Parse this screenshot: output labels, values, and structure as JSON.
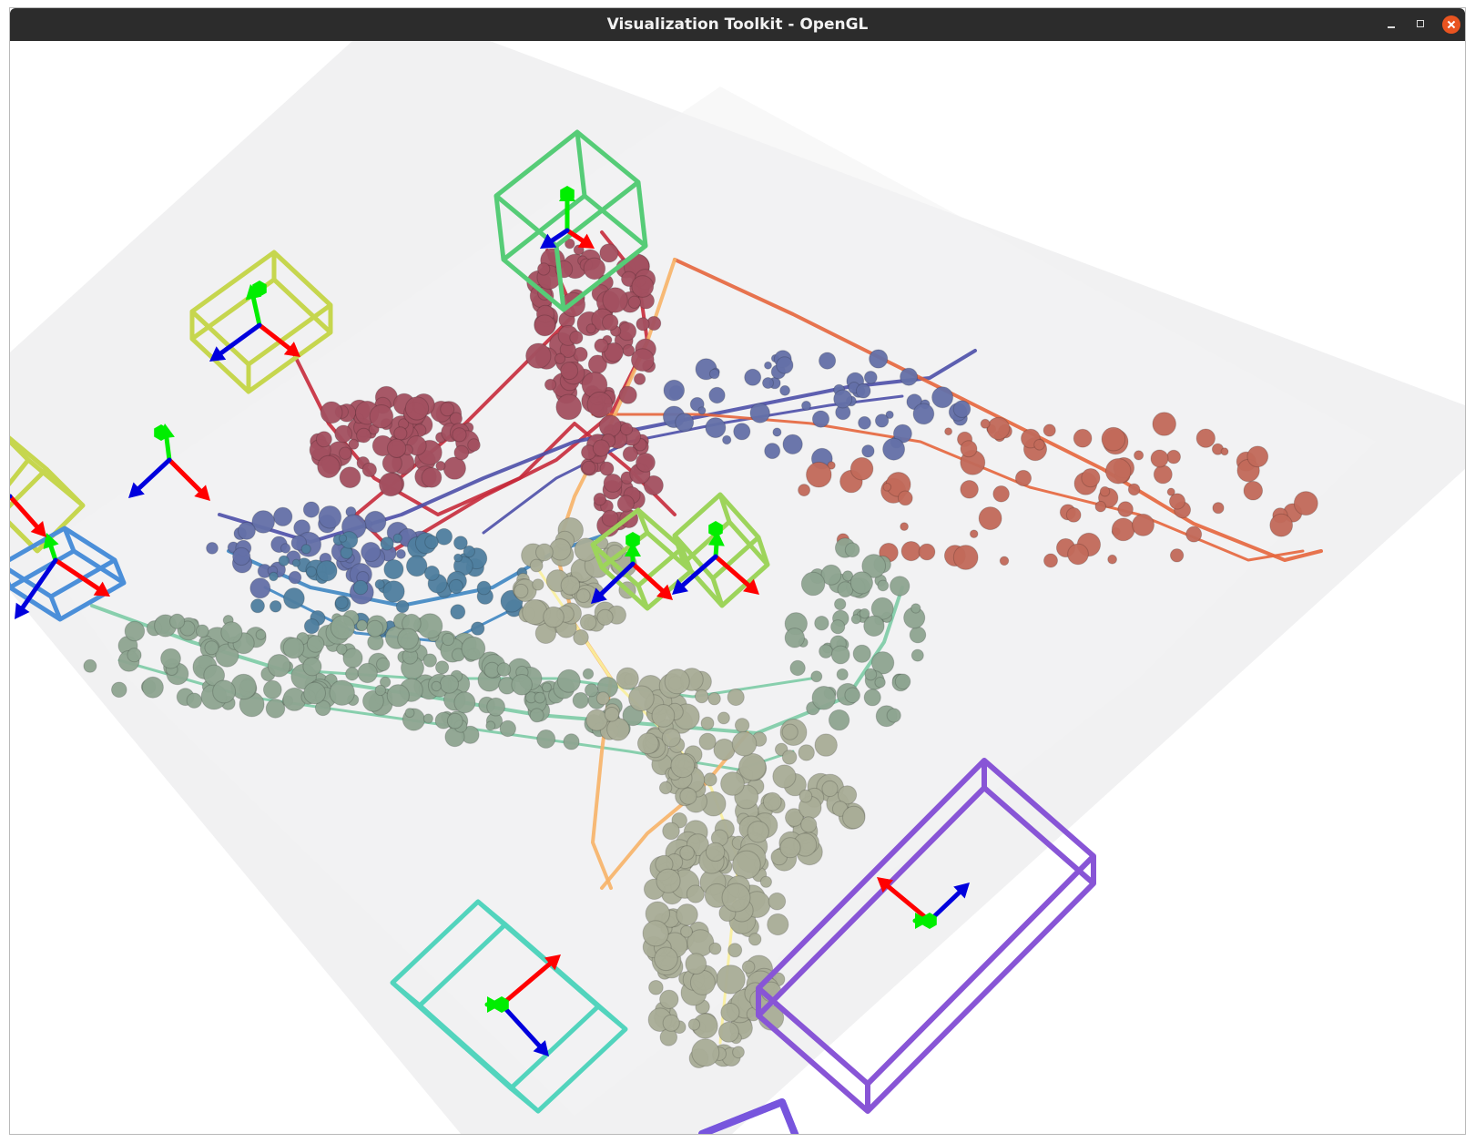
{
  "window": {
    "title": "Visualization Toolkit - OpenGL",
    "controls": [
      "minimize",
      "maximize",
      "close"
    ]
  },
  "scene": {
    "background": "#ffffff",
    "ground_plane_color": "#f1f1f2",
    "axis_colors": {
      "x": "#ff0000",
      "y": "#00ee00",
      "z": "#0000dd"
    },
    "trajectory_colors": [
      "#c62a3b",
      "#4c4fa8",
      "#e5653c",
      "#3e86c2",
      "#7ccba5",
      "#f7b267",
      "#f9ef9c"
    ],
    "node_colors": [
      "#a35060",
      "#6470a8",
      "#c26a5a",
      "#4f7f9f",
      "#8ea591",
      "#a9ad97"
    ],
    "camera_frame_colors": [
      "#56cc77",
      "#c6d64e",
      "#9dd45b",
      "#4b8fd9",
      "#52d4bd",
      "#8855d6",
      "#7755dd"
    ]
  }
}
